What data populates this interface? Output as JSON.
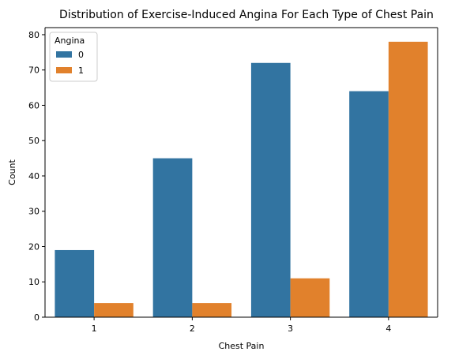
{
  "chart_data": {
    "type": "bar",
    "title": "Distribution of Exercise-Induced Angina For Each Type of Chest Pain",
    "xlabel": "Chest Pain",
    "ylabel": "Count",
    "categories": [
      "1",
      "2",
      "3",
      "4"
    ],
    "series": [
      {
        "name": "0",
        "values": [
          19,
          45,
          72,
          64
        ],
        "color": "#3274a1"
      },
      {
        "name": "1",
        "values": [
          4,
          4,
          11,
          78
        ],
        "color": "#e1812c"
      }
    ],
    "ylim": [
      0,
      82
    ],
    "yticks": [
      0,
      10,
      20,
      30,
      40,
      50,
      60,
      70,
      80
    ],
    "legend": {
      "title": "Angina",
      "placement": "top-left"
    },
    "grid": false
  }
}
